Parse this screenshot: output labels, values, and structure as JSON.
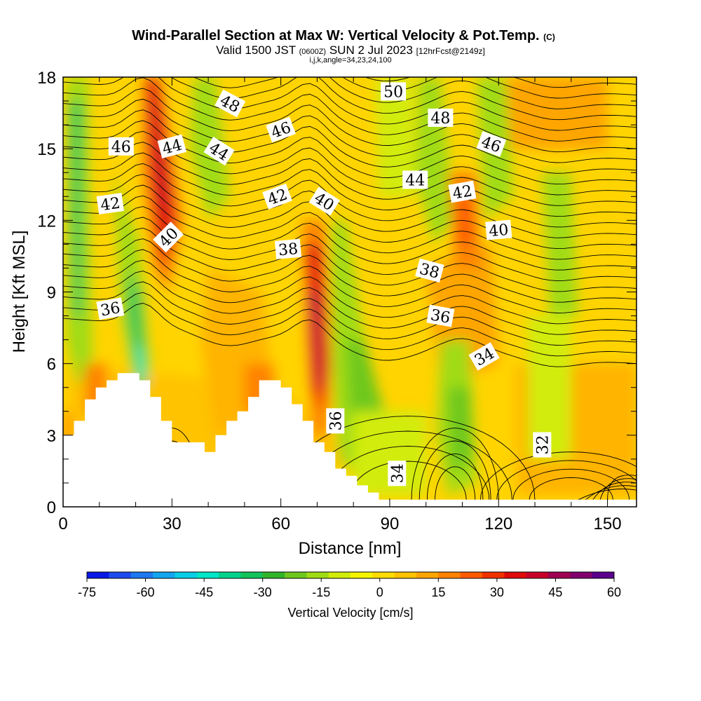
{
  "chart_data": {
    "type": "heatmap",
    "title": "Wind-Parallel Section at Max W: Vertical Velocity & Pot.Temp.",
    "title_mark": "(C)",
    "subtitle_valid": "Valid 1500 JST",
    "subtitle_utc": "(0600Z)",
    "subtitle_date": "SUN 2 Jul 2023",
    "subtitle_fcst": "[12hrFcst@2149z]",
    "subtitle_params": "i,j,k,angle=34,23,24,100",
    "xlabel": "Distance [nm]",
    "ylabel": "Height [Kft MSL]",
    "xlim": [
      0,
      158
    ],
    "ylim": [
      0,
      18
    ],
    "x_ticks": [
      "0",
      "30",
      "60",
      "90",
      "120",
      "150"
    ],
    "y_ticks": [
      "0",
      "3",
      "6",
      "9",
      "12",
      "15",
      "18"
    ],
    "colorbar": {
      "label": "Vertical Velocity [cm/s]",
      "ticks": [
        "-75",
        "-60",
        "-45",
        "-30",
        "-15",
        "0",
        "15",
        "30",
        "45",
        "60"
      ],
      "colors": [
        "#0a19e6",
        "#1e4bf0",
        "#1e78f0",
        "#14a5f0",
        "#0acde6",
        "#00e6c8",
        "#00d28c",
        "#14c35a",
        "#32b428",
        "#6ec81e",
        "#a0dc14",
        "#d2ec0a",
        "#f5f500",
        "#ffdc00",
        "#ffc300",
        "#ffa500",
        "#ff8200",
        "#ff5a00",
        "#f03200",
        "#e00a0a",
        "#c80028",
        "#a00050",
        "#82006e",
        "#5a008c"
      ]
    },
    "terrain_kft": [
      [
        0,
        3.0
      ],
      [
        3,
        3.6
      ],
      [
        6,
        4.5
      ],
      [
        9,
        5.0
      ],
      [
        12,
        5.3
      ],
      [
        15,
        5.6
      ],
      [
        21,
        5.3
      ],
      [
        24,
        4.6
      ],
      [
        27,
        3.6
      ],
      [
        30,
        2.7
      ],
      [
        33,
        2.7
      ],
      [
        36,
        2.7
      ],
      [
        39,
        2.3
      ],
      [
        42,
        3.0
      ],
      [
        45,
        3.6
      ],
      [
        48,
        4.0
      ],
      [
        51,
        4.6
      ],
      [
        54,
        5.3
      ],
      [
        57,
        5.3
      ],
      [
        60,
        5.0
      ],
      [
        63,
        4.3
      ],
      [
        66,
        3.6
      ],
      [
        69,
        2.7
      ],
      [
        72,
        2.3
      ],
      [
        75,
        1.6
      ],
      [
        78,
        1.3
      ],
      [
        81,
        0.9
      ],
      [
        84,
        0.6
      ],
      [
        87,
        0.3
      ],
      [
        158,
        0.3
      ]
    ],
    "theta_labels": [
      {
        "text": "50",
        "x": 91,
        "y": 17.4,
        "angle": 0
      },
      {
        "text": "48",
        "x": 46,
        "y": 16.9,
        "angle": 28
      },
      {
        "text": "48",
        "x": 104,
        "y": 16.3,
        "angle": 0
      },
      {
        "text": "46",
        "x": 16,
        "y": 15.1,
        "angle": 0
      },
      {
        "text": "44",
        "x": 30,
        "y": 15.1,
        "angle": -15
      },
      {
        "text": "44",
        "x": 43,
        "y": 14.9,
        "angle": 32
      },
      {
        "text": "46",
        "x": 60,
        "y": 15.8,
        "angle": -20
      },
      {
        "text": "46",
        "x": 118,
        "y": 15.2,
        "angle": 20
      },
      {
        "text": "44",
        "x": 97,
        "y": 13.7,
        "angle": 0
      },
      {
        "text": "42",
        "x": 13,
        "y": 12.7,
        "angle": -8
      },
      {
        "text": "42",
        "x": 59,
        "y": 13.0,
        "angle": -20
      },
      {
        "text": "40",
        "x": 72,
        "y": 12.8,
        "angle": 32
      },
      {
        "text": "42",
        "x": 110,
        "y": 13.2,
        "angle": -10
      },
      {
        "text": "40",
        "x": 29,
        "y": 11.3,
        "angle": -45
      },
      {
        "text": "38",
        "x": 62,
        "y": 10.8,
        "angle": -5
      },
      {
        "text": "40",
        "x": 120,
        "y": 11.6,
        "angle": -5
      },
      {
        "text": "38",
        "x": 101,
        "y": 9.9,
        "angle": 15
      },
      {
        "text": "36",
        "x": 13,
        "y": 8.3,
        "angle": -10
      },
      {
        "text": "36",
        "x": 104,
        "y": 8.0,
        "angle": 10
      },
      {
        "text": "34",
        "x": 116,
        "y": 6.3,
        "angle": -30
      },
      {
        "text": "36",
        "x": 75,
        "y": 3.6,
        "angle": -90
      },
      {
        "text": "34",
        "x": 92,
        "y": 1.4,
        "angle": -90
      },
      {
        "text": "32",
        "x": 132,
        "y": 2.6,
        "angle": -90
      }
    ]
  }
}
